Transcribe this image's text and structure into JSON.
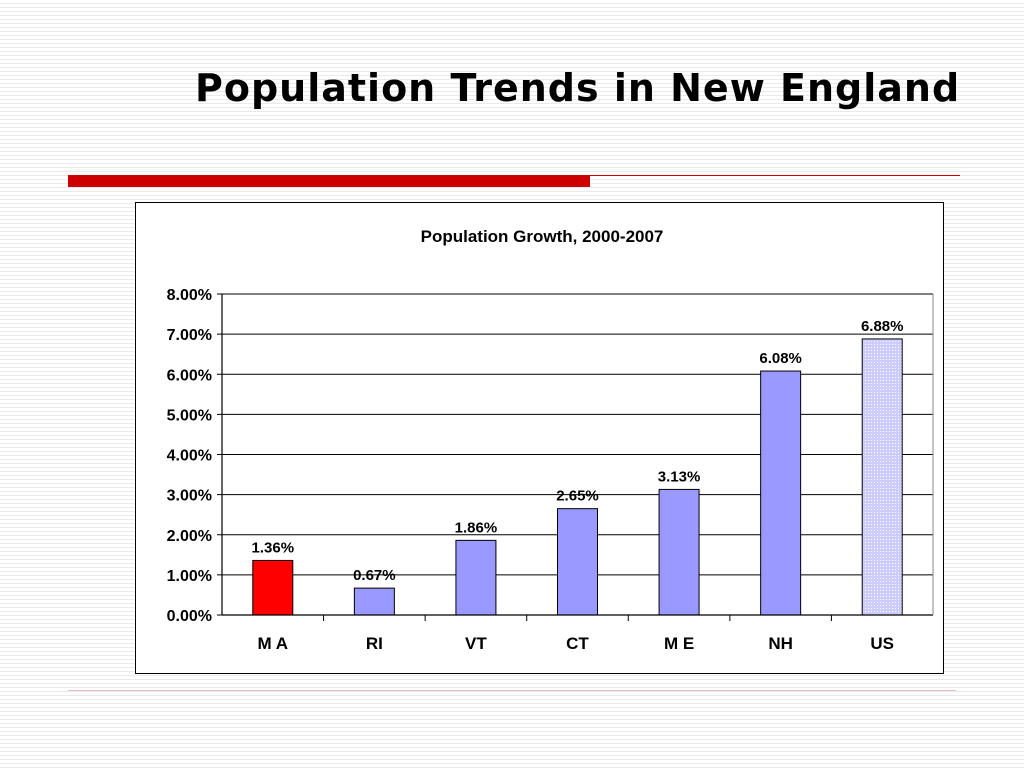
{
  "slide": {
    "title": "Population Trends in New England"
  },
  "colors": {
    "accent_rule": "#cc0000",
    "highlight_bar": "#ff0000",
    "bar": "#9999ff",
    "us_bar": "#ccccff"
  },
  "chart_data": {
    "type": "bar",
    "title": "Population Growth, 2000-2007",
    "categories": [
      "M A",
      "RI",
      "VT",
      "CT",
      "M E",
      "NH",
      "US"
    ],
    "values": [
      1.36,
      0.67,
      1.86,
      2.65,
      3.13,
      6.08,
      6.88
    ],
    "value_labels": [
      "1.36%",
      "0.67%",
      "1.86%",
      "2.65%",
      "3.13%",
      "6.08%",
      "6.88%"
    ],
    "yticks": [
      "0.00%",
      "1.00%",
      "2.00%",
      "3.00%",
      "4.00%",
      "5.00%",
      "6.00%",
      "7.00%",
      "8.00%"
    ],
    "ylim": [
      0,
      8
    ],
    "xlabel": "",
    "ylabel": "",
    "grid": true,
    "legend": "none"
  }
}
